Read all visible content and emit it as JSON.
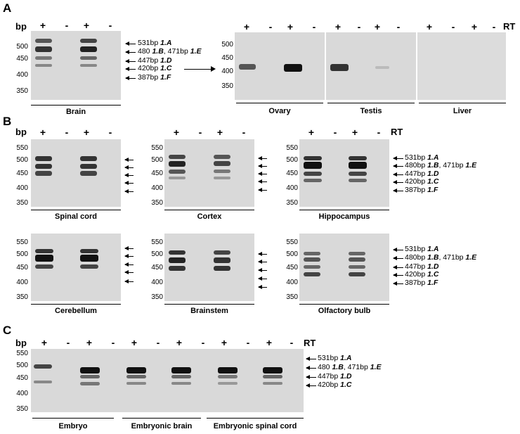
{
  "panels": {
    "a": "A",
    "b": "B",
    "c": "C"
  },
  "labels": {
    "bp": "bp",
    "rt": "RT",
    "plus": "+",
    "minus": "-"
  },
  "ticks": {
    "a_brain": [
      "500",
      "450",
      "400",
      "350"
    ],
    "a_right": [
      "500",
      "450",
      "400",
      "350"
    ],
    "bc": [
      "550",
      "500",
      "450",
      "400",
      "350"
    ]
  },
  "tissues": {
    "brain": "Brain",
    "ovary": "Ovary",
    "testis": "Testis",
    "liver": "Liver",
    "spinal_cord": "Spinal cord",
    "cortex": "Cortex",
    "hippocampus": "Hippocampus",
    "cerebellum": "Cerebellum",
    "brainstem": "Brainstem",
    "olfactory_bulb": "Olfactory bulb",
    "embryo": "Embryo",
    "embryonic_brain": "Embryonic brain",
    "embryonic_spinal_cord": "Embryonic spinal cord"
  },
  "bands": {
    "a": {
      "size": "531bp",
      "iso": "1.A"
    },
    "be": {
      "size": "480 ",
      "iso1": "1.B",
      "mid": ", 471bp ",
      "iso2": "1.E"
    },
    "be2": {
      "size": "480bp ",
      "iso1": "1.B",
      "mid": ", 471bp ",
      "iso2": "1.E"
    },
    "d": {
      "size": "447bp ",
      "iso": "1.D"
    },
    "c": {
      "size": "420bp ",
      "iso": "1.C"
    },
    "f": {
      "size": "387bp ",
      "iso": "1.F"
    }
  }
}
